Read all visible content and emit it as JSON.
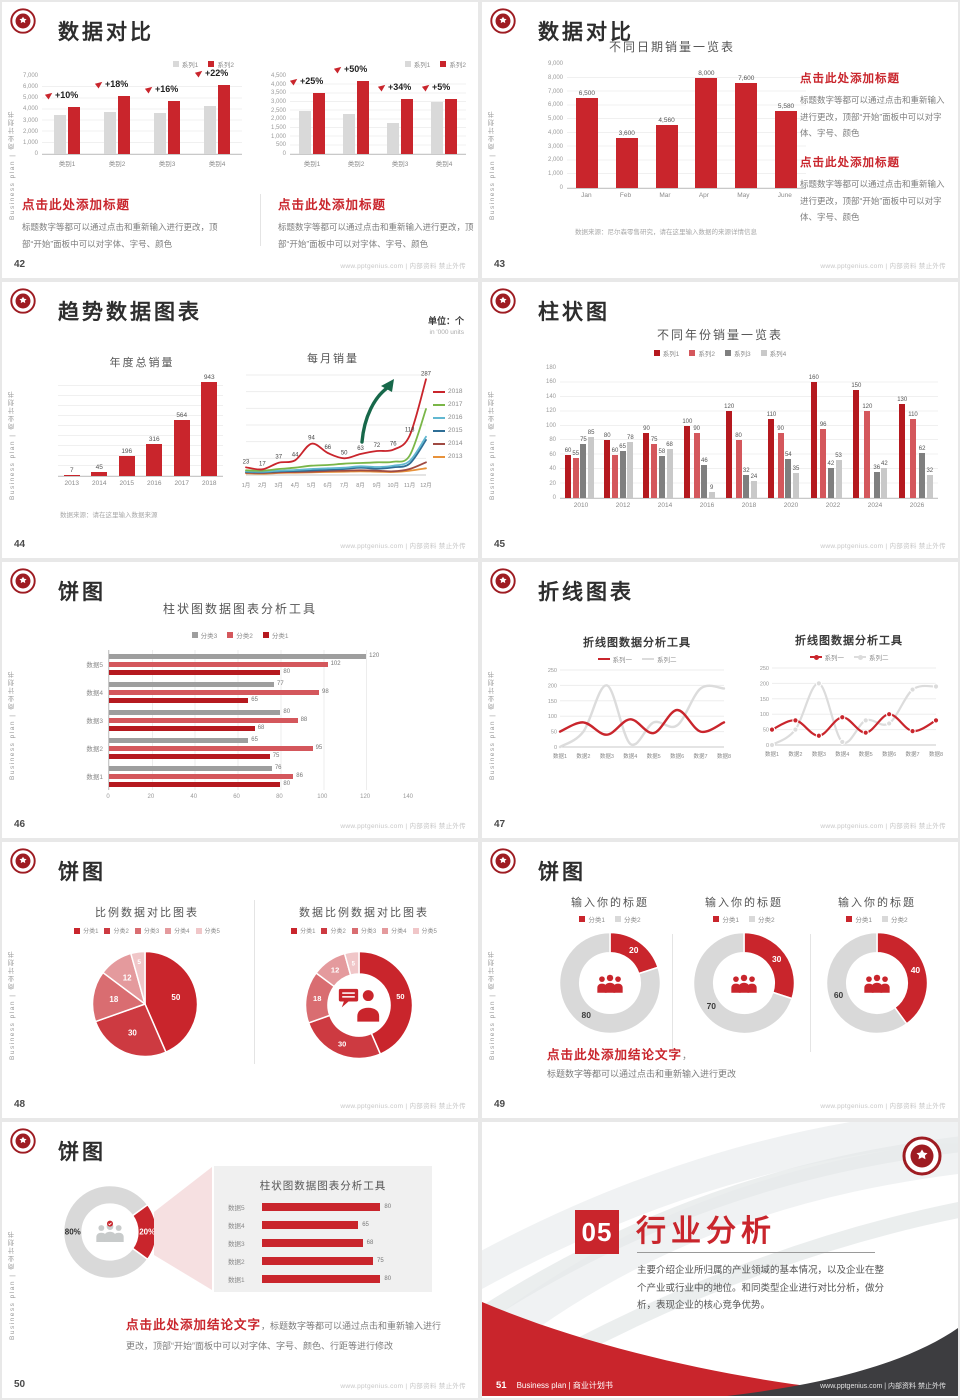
{
  "meta": {
    "footer": "www.pptgenius.com | 内部资料 禁止外传",
    "side_label": "Business plan | 商业计划书",
    "brand_red": "#c9252c"
  },
  "slides": {
    "s42": {
      "page": "42",
      "title": "数据对比",
      "heading": "点击此处添加标题",
      "body": "标题数字等都可以通过点击和重新输入进行更改，顶部“开始”面板中可以对字体、字号、颜色"
    },
    "s43": {
      "page": "43",
      "title": "数据对比",
      "heading": "点击此处添加标题",
      "body": "标题数字等都可以通过点击和重新输入进行更改，顶部“开始”面板中可以对字体、字号、颜色",
      "source": "数据来源：尼尔森零售研究，请在这里输入数据的来源详情信息"
    },
    "s44": {
      "page": "44",
      "title": "趋势数据图表",
      "unit_cn": "单位：个",
      "unit_en": "in '000 units",
      "source": "数据来源：请在这里输入数据来源"
    },
    "s45": {
      "page": "45",
      "title": "柱状图"
    },
    "s46": {
      "page": "46",
      "title": "饼图"
    },
    "s47": {
      "page": "47",
      "title": "折线图表"
    },
    "s48": {
      "page": "48",
      "title": "饼图"
    },
    "s49": {
      "page": "49",
      "title": "饼图",
      "conclusion": "点击此处添加结论文字",
      "conclusion_comma": "，",
      "conclusion_body": "标题数字等都可以通过点击和重新输入进行更改"
    },
    "s50": {
      "page": "50",
      "title": "饼图",
      "conclusion": "点击此处添加结论文字",
      "conclusion_body1": "，标题数字等都可以通过点击和重新输入进行",
      "conclusion_body2": "更改，顶部“开始”面板中可以对字体、字号、颜色、行距等进行修改",
      "donut_labels": [
        "20%",
        "80%"
      ]
    },
    "s51": {
      "page": "51",
      "number": "05",
      "title": "行业分析",
      "body": "主要介绍企业所归属的产业领域的基本情况，以及企业在整个产业或行业中的地位。和同类型企业进行对比分析，做分析，表现企业的核心竞争优势。",
      "footer_brand": "Business plan | 商业计划书"
    }
  },
  "chart_data": [
    {
      "id": "c42a",
      "slide": 42,
      "type": "bar",
      "variant": "grouped-vertical",
      "render": "vgroup",
      "categories": [
        "类别1",
        "类别2",
        "类别3",
        "类别4"
      ],
      "ylim": [
        0,
        7000
      ],
      "ystep": 1000,
      "series": [
        {
          "name": "系列1",
          "color": "#d9d9d9",
          "values": [
            3500,
            3800,
            3700,
            4300
          ]
        },
        {
          "name": "系列2",
          "color": "#c9252c",
          "values": [
            4200,
            5200,
            4800,
            6200
          ]
        }
      ],
      "annotations": [
        "+10%",
        "+18%",
        "+16%",
        "+22%"
      ]
    },
    {
      "id": "c42b",
      "slide": 42,
      "type": "bar",
      "variant": "grouped-vertical",
      "render": "vgroup",
      "categories": [
        "类别1",
        "类别2",
        "类别3",
        "类别4"
      ],
      "ylim": [
        0,
        4500
      ],
      "ystep": 500,
      "series": [
        {
          "name": "系列1",
          "color": "#d9d9d9",
          "values": [
            2500,
            2300,
            1800,
            3000
          ]
        },
        {
          "name": "系列2",
          "color": "#c9252c",
          "values": [
            3500,
            4200,
            3200,
            3200
          ]
        }
      ],
      "annotations": [
        "+25%",
        "+50%",
        "+34%",
        "+5%"
      ]
    },
    {
      "id": "c43",
      "slide": 43,
      "type": "bar",
      "render": "vgroup",
      "title": "不同日期销量一览表",
      "fmt": "comma",
      "categories": [
        "Jan",
        "Feb",
        "Mar",
        "Apr",
        "May",
        "June"
      ],
      "ylim": [
        0,
        9000
      ],
      "ystep": 1000,
      "series": [
        {
          "name": "销量",
          "color": "#c9252c",
          "values": [
            6500,
            3600,
            4560,
            8000,
            7600,
            5580
          ],
          "labeled": true
        }
      ]
    },
    {
      "id": "c44a",
      "slide": 44,
      "type": "bar",
      "render": "vgroup",
      "title": "年度总销量",
      "categories": [
        "2013",
        "2014",
        "2015",
        "2016",
        "2017",
        "2018"
      ],
      "ylim": [
        0,
        1000
      ],
      "ystep": 100,
      "series": [
        {
          "name": "年度总销量",
          "color": "#c9252c",
          "values": [
            7,
            45,
            196,
            316,
            564,
            943
          ],
          "labeled": true
        }
      ]
    },
    {
      "id": "c44b",
      "slide": 44,
      "type": "line",
      "render": "line",
      "title": "每月销量",
      "x": [
        "1月",
        "2月",
        "3月",
        "4月",
        "5月",
        "6月",
        "7月",
        "8月",
        "9月",
        "10月",
        "11月",
        "12月"
      ],
      "ylim": [
        0,
        300
      ],
      "ystep": 50,
      "series": [
        {
          "name": "2018",
          "color": "#c9252c",
          "values": [
            23,
            17,
            37,
            44,
            94,
            66,
            50,
            63,
            72,
            76,
            118,
            287
          ],
          "labeled": true
        },
        {
          "name": "2017",
          "color": "#7ab648",
          "values": [
            14,
            13,
            18,
            22,
            28,
            30,
            34,
            36,
            38,
            40,
            58,
            198
          ]
        },
        {
          "name": "2016",
          "color": "#62b8d1",
          "values": [
            11,
            10,
            13,
            15,
            18,
            20,
            22,
            26,
            24,
            28,
            42,
            115
          ]
        },
        {
          "name": "2015",
          "color": "#2e6e96",
          "values": [
            9,
            8,
            11,
            12,
            14,
            16,
            18,
            22,
            19,
            23,
            34,
            105
          ]
        },
        {
          "name": "2014",
          "color": "#a04a42",
          "values": [
            7,
            6,
            8,
            9,
            10,
            12,
            13,
            14,
            13,
            11,
            18,
            38
          ]
        },
        {
          "name": "2013",
          "color": "#e8923a",
          "values": [
            5,
            4,
            6,
            7,
            8,
            9,
            10,
            11,
            10,
            9,
            13,
            20
          ]
        }
      ]
    },
    {
      "id": "c45",
      "slide": 45,
      "type": "bar",
      "variant": "grouped-vertical",
      "render": "vgroup",
      "title": "不同年份销量一览表",
      "categories": [
        "2010",
        "2012",
        "2014",
        "2016",
        "2018",
        "2020",
        "2022",
        "2024",
        "2026"
      ],
      "ylim": [
        0,
        180
      ],
      "ystep": 20,
      "series": [
        {
          "name": "系列1",
          "color": "#b5191f",
          "values": [
            60,
            80,
            90,
            100,
            120,
            110,
            160,
            150,
            130
          ],
          "labeled": true
        },
        {
          "name": "系列2",
          "color": "#d4575c",
          "values": [
            55,
            60,
            75,
            90,
            80,
            90,
            96,
            120,
            110
          ],
          "labeled": true
        },
        {
          "name": "系列3",
          "color": "#7f7f7f",
          "values": [
            75,
            65,
            58,
            46,
            32,
            54,
            42,
            36,
            62
          ],
          "labeled": true
        },
        {
          "name": "系列4",
          "color": "#c9c9c9",
          "values": [
            85,
            78,
            68,
            9,
            24,
            35,
            53,
            42,
            32
          ],
          "labeled": true
        }
      ]
    },
    {
      "id": "c46",
      "slide": 46,
      "type": "bar",
      "variant": "grouped-horizontal",
      "render": "hgroup",
      "title": "柱状图数据图表分析工具",
      "categories": [
        "数据5",
        "数据4",
        "数据3",
        "数据2",
        "数据1"
      ],
      "xlim": [
        0,
        140
      ],
      "xstep": 20,
      "series": [
        {
          "name": "分类3",
          "color": "#9e9e9e",
          "values": [
            120,
            77,
            80,
            65,
            76
          ]
        },
        {
          "name": "分类2",
          "color": "#d4575c",
          "values": [
            102,
            98,
            88,
            95,
            86
          ]
        },
        {
          "name": "分类1",
          "color": "#b5191f",
          "values": [
            80,
            65,
            68,
            75,
            80
          ]
        }
      ]
    },
    {
      "id": "c47a",
      "slide": 47,
      "type": "line",
      "render": "line",
      "title": "折线图数据分析工具",
      "x": [
        "数据1",
        "数据2",
        "数据3",
        "数据4",
        "数据5",
        "数据6",
        "数据7",
        "数据8"
      ],
      "ylim": [
        0,
        250
      ],
      "ystep": 50,
      "series": [
        {
          "name": "系列一",
          "color": "#c9252c",
          "values": [
            50,
            80,
            40,
            90,
            45,
            120,
            50,
            80
          ]
        },
        {
          "name": "系列二",
          "color": "#dcdcdc",
          "values": [
            0,
            50,
            200,
            10,
            80,
            70,
            190,
            190
          ]
        }
      ]
    },
    {
      "id": "c47b",
      "slide": 47,
      "type": "line",
      "render": "line",
      "markers": true,
      "title": "折线图数据分析工具",
      "x": [
        "数据1",
        "数据2",
        "数据3",
        "数据4",
        "数据5",
        "数据6",
        "数据7",
        "数据8"
      ],
      "ylim": [
        0,
        250
      ],
      "ystep": 50,
      "series": [
        {
          "name": "系列一",
          "color": "#c9252c",
          "values": [
            50,
            80,
            30,
            90,
            40,
            100,
            45,
            80
          ]
        },
        {
          "name": "系列二",
          "color": "#dcdcdc",
          "values": [
            0,
            50,
            200,
            10,
            80,
            70,
            180,
            190
          ]
        }
      ]
    },
    {
      "id": "c48a",
      "slide": 48,
      "type": "pie",
      "render": "pie",
      "title": "比例数据对比图表",
      "names": [
        "分类1",
        "分类2",
        "分类3",
        "分类4",
        "分类5"
      ],
      "values": [
        50,
        30,
        18,
        12,
        5
      ],
      "colors": [
        "#c9252c",
        "#cd3a41",
        "#d96d71",
        "#e49a9d",
        "#f0c6c8"
      ],
      "inner": 0
    },
    {
      "id": "c48b",
      "slide": 48,
      "type": "pie",
      "render": "pie",
      "title": "数据比例数据对比图表",
      "names": [
        "分类1",
        "分类2",
        "分类3",
        "分类4",
        "分类5"
      ],
      "values": [
        50,
        30,
        18,
        12,
        5
      ],
      "colors": [
        "#c9252c",
        "#cd3a41",
        "#d96d71",
        "#e49a9d",
        "#f0c6c8"
      ],
      "inner": 0.58
    },
    {
      "id": "c49a",
      "slide": 49,
      "type": "pie",
      "render": "pie",
      "title": "输入你的标题",
      "names": [
        "分类1",
        "分类2"
      ],
      "values": [
        20,
        80
      ],
      "colors": [
        "#c9252c",
        "#d9d9d9"
      ],
      "label_colors": [
        "#ffffff",
        "#3c3c3c"
      ],
      "inner": 0.6
    },
    {
      "id": "c49b",
      "slide": 49,
      "type": "pie",
      "render": "pie",
      "title": "输入你的标题",
      "names": [
        "分类1",
        "分类2"
      ],
      "values": [
        30,
        70
      ],
      "colors": [
        "#c9252c",
        "#d9d9d9"
      ],
      "label_colors": [
        "#ffffff",
        "#3c3c3c"
      ],
      "inner": 0.6
    },
    {
      "id": "c49c",
      "slide": 49,
      "type": "pie",
      "render": "pie",
      "title": "输入你的标题",
      "names": [
        "分类1",
        "分类2"
      ],
      "values": [
        40,
        60
      ],
      "colors": [
        "#c9252c",
        "#d9d9d9"
      ],
      "label_colors": [
        "#ffffff",
        "#3c3c3c"
      ],
      "inner": 0.6
    },
    {
      "id": "c50",
      "slide": 50,
      "type": "pie",
      "render": "pie",
      "values": [
        20,
        80
      ],
      "labels": [
        "20%",
        "80%"
      ],
      "colors": [
        "#c9252c",
        "#d9d9d9"
      ],
      "label_colors": [
        "#ffffff",
        "#2f2f2f"
      ],
      "inner": 0.6,
      "start": -36
    },
    {
      "id": "c50bars",
      "slide": 50,
      "type": "bar",
      "variant": "horizontal",
      "render": "hbars",
      "title": "柱状图数据图表分析工具",
      "categories": [
        "数据5",
        "数据4",
        "数据3",
        "数据2",
        "数据1"
      ],
      "values": [
        80,
        65,
        68,
        75,
        80
      ],
      "color": "#c9252c"
    }
  ]
}
